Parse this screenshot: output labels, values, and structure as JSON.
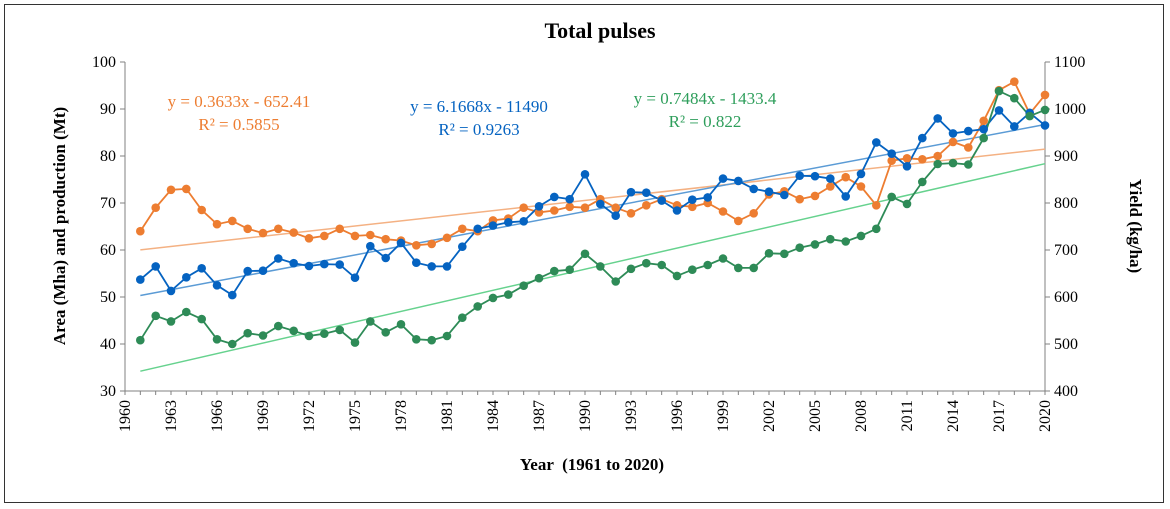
{
  "chart_data": {
    "type": "line",
    "title": "Total pulses",
    "xlabel": "Year  (1961 to 2020)",
    "ylabel": "Area (Mha) and production (Mt)",
    "y2label": "Yield (kg/ha)",
    "xlim": [
      1960,
      2020
    ],
    "ylim": [
      30,
      100
    ],
    "y2lim": [
      400,
      1100
    ],
    "xticks": [
      1960,
      1963,
      1966,
      1969,
      1972,
      1975,
      1978,
      1981,
      1984,
      1987,
      1990,
      1993,
      1996,
      1999,
      2002,
      2005,
      2008,
      2011,
      2014,
      2017,
      2020
    ],
    "yticks": [
      30,
      40,
      50,
      60,
      70,
      80,
      90,
      100
    ],
    "y2ticks": [
      400,
      500,
      600,
      700,
      800,
      900,
      1000,
      1100
    ],
    "x": [
      1961,
      1962,
      1963,
      1964,
      1965,
      1966,
      1967,
      1968,
      1969,
      1970,
      1971,
      1972,
      1973,
      1974,
      1975,
      1976,
      1977,
      1978,
      1979,
      1980,
      1981,
      1982,
      1983,
      1984,
      1985,
      1986,
      1987,
      1988,
      1989,
      1990,
      1991,
      1992,
      1993,
      1994,
      1995,
      1996,
      1997,
      1998,
      1999,
      2000,
      2001,
      2002,
      2003,
      2004,
      2005,
      2006,
      2007,
      2008,
      2009,
      2010,
      2011,
      2012,
      2013,
      2014,
      2015,
      2016,
      2017,
      2018,
      2019,
      2020
    ],
    "series": [
      {
        "name": "Area",
        "axis": "left",
        "color": "#ED7D31",
        "trend_color": "#F4B183",
        "values": [
          64.0,
          69.0,
          72.8,
          73.0,
          68.5,
          65.5,
          66.2,
          64.5,
          63.6,
          64.5,
          63.7,
          62.5,
          63.0,
          64.5,
          63.0,
          63.2,
          62.3,
          62.0,
          61.0,
          61.3,
          62.6,
          64.5,
          64.0,
          66.3,
          66.7,
          69.0,
          68.0,
          68.4,
          69.2,
          69.0,
          70.8,
          69.0,
          67.8,
          69.5,
          70.8,
          69.5,
          69.2,
          70.0,
          68.2,
          66.2,
          67.8,
          71.8,
          72.5,
          70.8,
          71.5,
          73.5,
          75.5,
          73.5,
          69.5,
          79.0,
          79.5,
          79.3,
          80.0,
          83.0,
          81.8,
          87.5,
          94.0,
          95.8,
          89.0,
          93.0
        ],
        "trend": {
          "equation": "y = 0.3633x - 652.41",
          "r2": "R² = 0.5855",
          "slope": 0.3633,
          "intercept": -652.41
        }
      },
      {
        "name": "Yield",
        "axis": "right",
        "color": "#0563C1",
        "trend_color": "#5B9BD5",
        "values": [
          637,
          665,
          613,
          642,
          661,
          625,
          604,
          655,
          656,
          682,
          672,
          666,
          670,
          669,
          641,
          708,
          683,
          715,
          673,
          665,
          665,
          707,
          745,
          752,
          759,
          761,
          793,
          813,
          808,
          861,
          798,
          773,
          823,
          822,
          805,
          784,
          807,
          812,
          852,
          847,
          830,
          824,
          817,
          858,
          857,
          852,
          814,
          862,
          929,
          905,
          878,
          938,
          980,
          948,
          953,
          957,
          997,
          963,
          992,
          965
        ],
        "trend": {
          "equation": "y = 6.1668x - 11490",
          "r2": "R² = 0.9263",
          "slope": 6.1668,
          "intercept": -11490
        }
      },
      {
        "name": "Production",
        "axis": "left",
        "color": "#2E8B57",
        "trend_color": "#66D28E",
        "values": [
          40.8,
          46.0,
          44.8,
          46.8,
          45.3,
          41.0,
          40.0,
          42.3,
          41.8,
          43.8,
          42.8,
          41.7,
          42.2,
          43.0,
          40.3,
          44.8,
          42.5,
          44.2,
          41.0,
          40.8,
          41.7,
          45.6,
          48.0,
          49.8,
          50.5,
          52.4,
          54.0,
          55.5,
          55.8,
          59.2,
          56.5,
          53.3,
          56.0,
          57.2,
          56.8,
          54.5,
          55.8,
          56.8,
          58.2,
          56.2,
          56.2,
          59.3,
          59.2,
          60.5,
          61.2,
          62.3,
          61.8,
          63.0,
          64.5,
          71.3,
          69.8,
          74.5,
          78.3,
          78.5,
          78.2,
          83.8,
          93.8,
          92.3,
          88.5,
          89.8
        ],
        "trend": {
          "equation": "y = 0.7484x - 1433.4",
          "r2": "R² = 0.822",
          "slope": 0.7484,
          "intercept": -1433.4
        }
      }
    ],
    "legend": "none",
    "grid": false
  }
}
